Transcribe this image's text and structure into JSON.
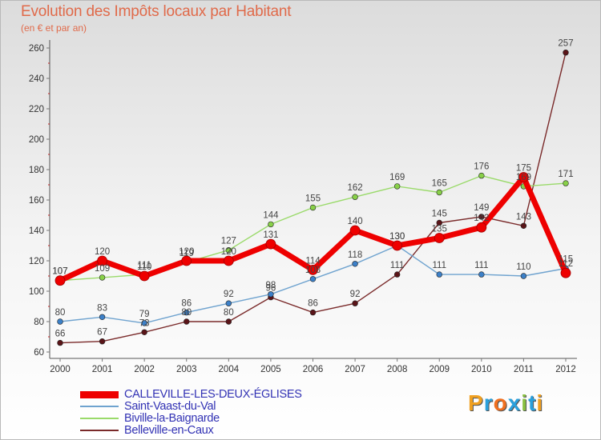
{
  "chart_data": {
    "type": "line",
    "title": "Evolution des Impôts locaux par Habitant",
    "subtitle": "(en € et par an)",
    "xlabel": "",
    "ylabel": "",
    "ylim": [
      60,
      260
    ],
    "yticks": [
      "60",
      "80",
      "100",
      "120",
      "140",
      "160",
      "180",
      "200",
      "220",
      "240",
      "260"
    ],
    "categories": [
      "2000",
      "2001",
      "2002",
      "2003",
      "2004",
      "2005",
      "2006",
      "2007",
      "2008",
      "2009",
      "2010",
      "2011",
      "2012"
    ],
    "grid": false,
    "series": [
      {
        "name": "CALLEVILLE-LES-DEUX-ÉGLISES",
        "color": "#ee0000",
        "marker": "#ee0000",
        "values": [
          107,
          120,
          110,
          120,
          120,
          131,
          114,
          140,
          130,
          135,
          142,
          175,
          112
        ],
        "labels": [
          "107",
          "120",
          "110",
          "120",
          "120",
          "131",
          "114",
          "140",
          "130",
          "135",
          "142",
          "175",
          "112"
        ]
      },
      {
        "name": "Saint-Vaast-du-Val",
        "color": "#6fa3cf",
        "marker": "#3c80c8",
        "values": [
          80,
          83,
          79,
          86,
          92,
          98,
          108,
          118,
          130,
          111,
          111,
          110,
          115
        ],
        "labels": [
          "80",
          "83",
          "79",
          "86",
          "92",
          "98",
          "108",
          "118",
          "130",
          "111",
          "111",
          "110",
          "115"
        ]
      },
      {
        "name": "Biville-la-Baignarde",
        "color": "#9ada6a",
        "marker": "#88d048",
        "values": [
          107,
          109,
          111,
          119,
          127,
          144,
          155,
          162,
          169,
          165,
          176,
          169,
          171
        ],
        "labels": [
          "107",
          "109",
          "111",
          "119",
          "127",
          "144",
          "155",
          "162",
          "169",
          "165",
          "176",
          "169",
          "171"
        ]
      },
      {
        "name": "Belleville-en-Caux",
        "color": "#7a2a2a",
        "marker": "#5a1418",
        "values": [
          66,
          67,
          73,
          80,
          80,
          96,
          86,
          92,
          111,
          145,
          149,
          143,
          257
        ],
        "labels": [
          "66",
          "67",
          "73",
          "80",
          "80",
          "96",
          "86",
          "92",
          "111",
          "145",
          "149",
          "143",
          "257"
        ]
      }
    ]
  },
  "logo": {
    "letters": [
      "P",
      "r",
      "o",
      "x",
      "i",
      "t",
      "i"
    ],
    "colors": [
      "#f0a020",
      "#2aa0dc",
      "#f07020",
      "#2aa0dc",
      "#88c040",
      "#2aa0dc",
      "#f0a020"
    ]
  }
}
